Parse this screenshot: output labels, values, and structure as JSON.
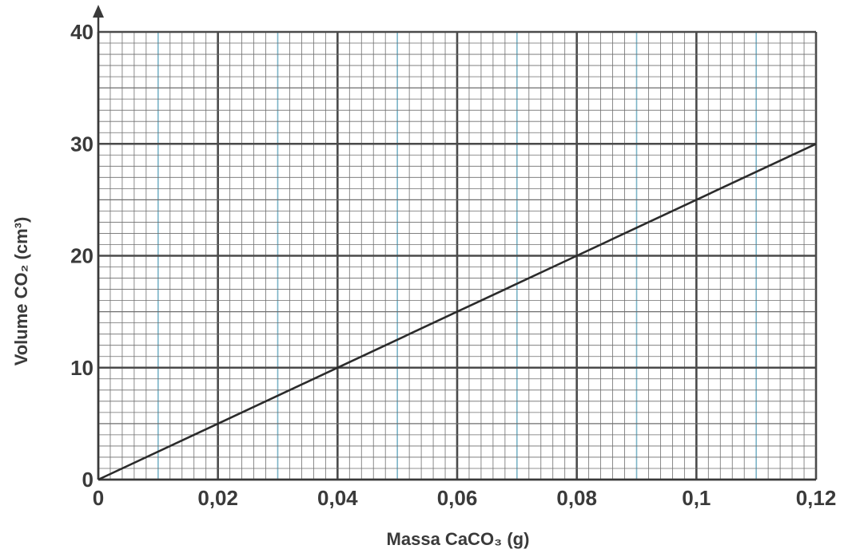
{
  "chart_data": {
    "type": "line",
    "title": "",
    "xlabel": "Massa CaCO₃ (g)",
    "ylabel": "Volume CO₂ (cm³)",
    "xlim": [
      0,
      0.12
    ],
    "ylim": [
      0,
      40
    ],
    "grid": true,
    "x_ticks": [
      {
        "value": 0,
        "label": "0"
      },
      {
        "value": 0.02,
        "label": "0,02"
      },
      {
        "value": 0.04,
        "label": "0,04"
      },
      {
        "value": 0.06,
        "label": "0,06"
      },
      {
        "value": 0.08,
        "label": "0,08"
      },
      {
        "value": 0.1,
        "label": "0,1"
      },
      {
        "value": 0.12,
        "label": "0,12"
      }
    ],
    "y_ticks": [
      {
        "value": 0,
        "label": "0"
      },
      {
        "value": 10,
        "label": "10"
      },
      {
        "value": 20,
        "label": "20"
      },
      {
        "value": 30,
        "label": "30"
      },
      {
        "value": 40,
        "label": "40"
      }
    ],
    "series": [
      {
        "x": [
          0,
          0.02,
          0.04,
          0.06,
          0.08,
          0.1,
          0.12
        ],
        "y": [
          0,
          5,
          10,
          15,
          20,
          25,
          30
        ]
      }
    ],
    "colors": {
      "line": "#2b2b2b",
      "major_grid": "#4a4a4a",
      "minor_grid": "#6e6e6e",
      "blue_grid": "#7ab3c7",
      "text": "#3a3a3a"
    }
  }
}
